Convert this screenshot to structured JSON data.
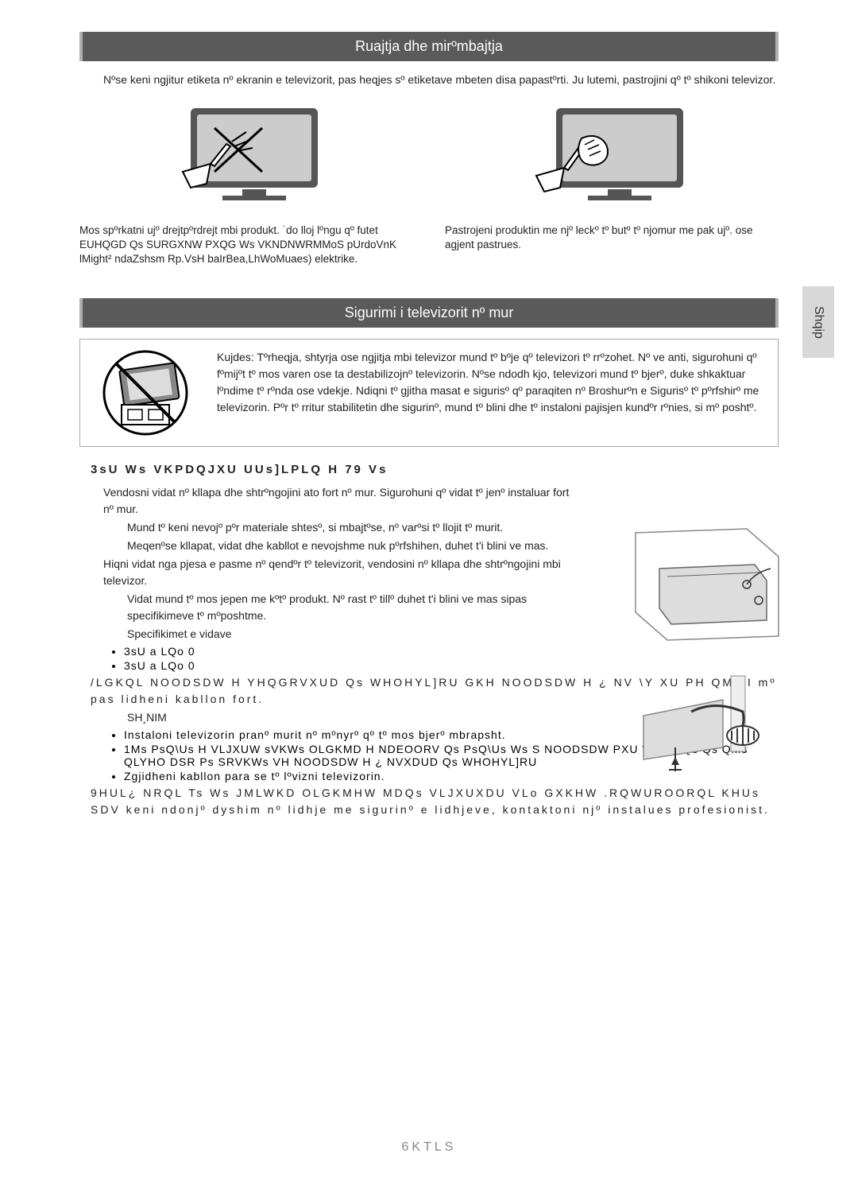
{
  "language_tab": "Shqip",
  "section1": {
    "title": "Ruajtja dhe mirºmbajtja",
    "intro": "Nºse keni ngjitur etiketa nº ekranin e televizorit, pas heqjes sº etiketave mbeten disa papastºrti. Ju lutemi, pastrojini qº tº shikoni televizor.",
    "left_caption": "Mos spºrkatni ujº drejtpºrdrejt mbi produkt. ˙do lloj lºngu qº futet EUHQGD Qs SURGXNW PXQG Ws  VKNDNWRMMoS pUrdoVnK lMight² ndaZshsm Rp.VsH baIrBea,LhWoMuaes) elektrike.",
    "right_caption": "Pastrojeni produktin me njº leckº tº butº tº njomur me pak ujº. ose agjent pastrues."
  },
  "section2": {
    "title": "Sigurimi i televizorit nº mur",
    "warning": "Kujdes: Tºrheqja, shtyrja ose ngjitja mbi televizor mund tº bºje qº televizori tº rrºzohet. Nº ve anti, sigurohuni qº fºmijºt tº mos varen ose ta destabilizojnº televizorin. Nºse ndodh kjo, televizori mund tº bjerº, duke shkaktuar lºndime tº rºnda ose vdekje. Ndiqni tº gjitha masat e sigurisº qº paraqiten nº Broshurºn e Sigurisº tº pºrfshirº me televizorin. Pºr tº rritur stabilitetin dhe sigurinº, mund tº blini dhe tº instaloni pajisjen kundºr rºnies, si mº poshtº.",
    "subhead": "3sU  Ws   VKPDQJXU  UUs]LPLQ  H  79   Vs",
    "p1": "Vendosni vidat nº kllapa dhe shtrºngojini ato fort nº mur. Sigurohuni qº vidat tº jenº instaluar fort nº mur.",
    "p2": "Mund tº keni nevojº pºr materiale shtesº, si mbajtºse, nº varºsi tº llojit tº murit.",
    "p3": "Meqenºse kllapat, vidat dhe kabllot e nevojshme nuk pºrfshihen, duhet t'i blini ve mas.",
    "p4": "Hiqni vidat nga pjesa e pasme nº qendºr tº televizorit, vendosini nº kllapa dhe shtrºngojini mbi televizor.",
    "p5": "Vidat mund tº mos jepen me kºtº produkt. Nº rast tº tillº duhet t'i blini ve mas sipas specifikimeve tº mºposhtme.",
    "p6": "Specifikimet e vidave",
    "bullets_a": [
      "3sU      a       LQo   0",
      "3sU      a       LQo   0"
    ],
    "p7": "/LGKQL  NOODSDW  H  YHQGRVXUD  Qs  WHOHYL]RU  GKH  NOODSDW  H   ¿  NV    \\Y        XU  PH  QMs  I mº pas lidheni kabllon fort.",
    "p8": "SH¸NIM",
    "bullets_b": [
      "Instaloni televizorin pranº murit nº mºnyrº qº tº mos bjerº mbrapsht.",
      "1Ms  PsQ\\Us  H  VLJXUW  sVKWs   OLGKMD  H  NDEOORV  Qs  PsQ\\Us  Ws               S  NOODSDW PXU Ws MHQs Qs QMs QLYHO DSR Ps SRVKWs VH NOODSDW H ¿ NVXDUD Qs WHOHYL]RU",
      "Zgjidheni kabllon para se tº lºvizni televizorin."
    ],
    "p9": "9HUL¿  NRQL  Ts  Ws   JMLWKD   OLGKMHW  MDQs   VLJXUXDU  VLo   GXKHW    .RQWUROORQL   KHUs   SDV keni ndonjº dyshim nº lidhje me sigurinº e lidhjeve, kontaktoni njº instalues profesionist."
  },
  "footer": "6KTLS",
  "colors": {
    "header_bg": "#5a5a5a",
    "header_border": "#b0b0b0",
    "tab_bg": "#d8d8d8",
    "text": "#222222",
    "footer": "#888888",
    "box_border": "#aaaaaa"
  }
}
